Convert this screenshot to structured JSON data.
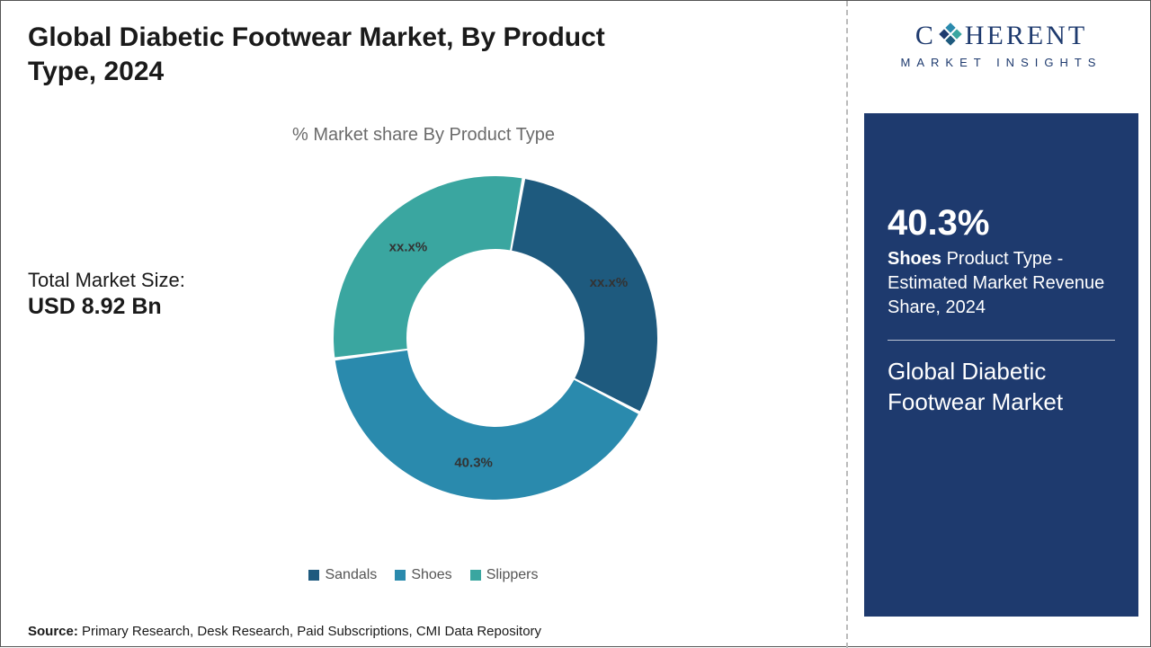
{
  "title": "Global Diabetic Footwear Market, By Product Type, 2024",
  "subtitle": "% Market share By Product Type",
  "market_size_label": "Total Market Size:",
  "market_size_value": "USD 8.92 Bn",
  "source_prefix": "Source:",
  "source_text": "Primary Research, Desk Research, Paid Subscriptions, CMI Data Repository",
  "logo": {
    "main_left": "C",
    "main_right": "HERENT",
    "sub": "MARKET INSIGHTS"
  },
  "stat": {
    "pct": "40.3%",
    "bold": "Shoes",
    "rest": " Product Type - Estimated Market Revenue Share, 2024",
    "title": "Global Diabetic Footwear Market"
  },
  "chart": {
    "type": "donut",
    "inner_radius_ratio": 0.55,
    "background_color": "#ffffff",
    "gap_color": "#ffffff",
    "gap_deg": 1.2,
    "slices": [
      {
        "name": "Sandals",
        "value": 29.85,
        "color": "#1e5a7e",
        "label": "xx.x%"
      },
      {
        "name": "Shoes",
        "value": 40.3,
        "color": "#2a8aad",
        "label": "40.3%"
      },
      {
        "name": "Slippers",
        "value": 29.85,
        "color": "#3aa6a0",
        "label": "xx.x%"
      }
    ],
    "start_angle_deg": -80,
    "label_radius_ratio": 0.78,
    "label_fontsize": 15,
    "label_fontweight": "700",
    "label_color": "#333333"
  },
  "legend": [
    {
      "name": "Sandals",
      "color": "#1e5a7e"
    },
    {
      "name": "Shoes",
      "color": "#2a8aad"
    },
    {
      "name": "Slippers",
      "color": "#3aa6a0"
    }
  ],
  "colors": {
    "brand_blue": "#1e3a6e",
    "text_gray": "#6b6b6b",
    "divider": "#bbbbbb"
  }
}
